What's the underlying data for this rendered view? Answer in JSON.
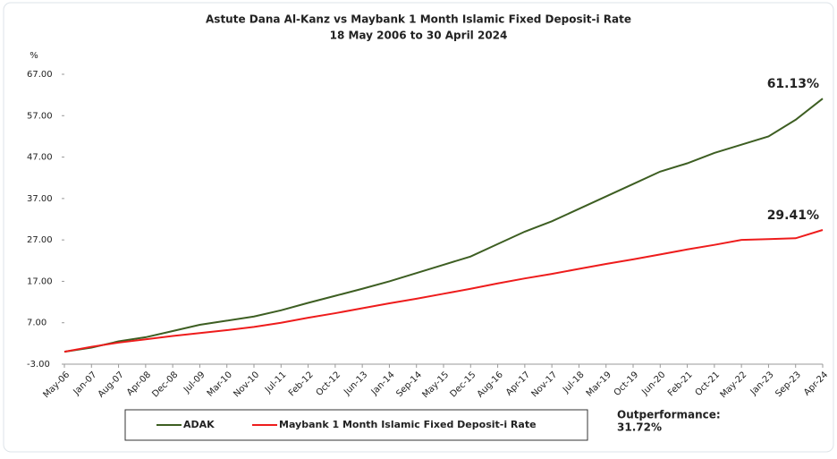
{
  "chart_data": {
    "type": "line",
    "title": "Astute Dana Al-Kanz vs Maybank 1 Month Islamic Fixed Deposit-i Rate",
    "subtitle": "18 May 2006 to 30 April 2024",
    "y_axis_label": "%",
    "categories": [
      "May-06",
      "Jan-07",
      "Aug-07",
      "Apr-08",
      "Dec-08",
      "Jul-09",
      "Mar-10",
      "Nov-10",
      "Jul-11",
      "Feb-12",
      "Oct-12",
      "Jun-13",
      "Jan-14",
      "Sep-14",
      "May-15",
      "Dec-15",
      "Aug-16",
      "Apr-17",
      "Nov-17",
      "Jul-18",
      "Mar-19",
      "Oct-19",
      "Jun-20",
      "Feb-21",
      "Oct-21",
      "May-22",
      "Jan-23",
      "Sep-23",
      "Apr-24"
    ],
    "series": [
      {
        "name": "ADAK",
        "color": "#3d5e22",
        "values": [
          0,
          1,
          2.5,
          3.5,
          5,
          6.5,
          7.5,
          8.5,
          10,
          11.8,
          13.5,
          15.2,
          17,
          19,
          21,
          23,
          26,
          29,
          31.5,
          34.5,
          37.5,
          40.5,
          43.5,
          45.5,
          48,
          50,
          52,
          56,
          61.13
        ],
        "value_labels": [
          null,
          null,
          null,
          null,
          null,
          null,
          null,
          null,
          null,
          null,
          null,
          null,
          null,
          null,
          null,
          null,
          null,
          null,
          null,
          null,
          null,
          null,
          null,
          null,
          null,
          null,
          null,
          null,
          "61.13%"
        ]
      },
      {
        "name": "Maybank 1 Month Islamic Fixed Deposit-i Rate",
        "color": "#ee1c1c",
        "values": [
          0,
          1.2,
          2.2,
          3,
          3.8,
          4.5,
          5.2,
          6,
          7,
          8.2,
          9.3,
          10.5,
          11.7,
          12.8,
          14,
          15.2,
          16.5,
          17.7,
          18.8,
          20,
          21.2,
          22.3,
          23.5,
          24.7,
          25.8,
          27,
          27.2,
          27.4,
          29.41
        ],
        "value_labels": [
          null,
          null,
          null,
          null,
          null,
          null,
          null,
          null,
          null,
          null,
          null,
          null,
          null,
          null,
          null,
          null,
          null,
          null,
          null,
          null,
          null,
          null,
          null,
          null,
          null,
          null,
          null,
          null,
          "29.41%"
        ]
      }
    ],
    "annotations": [
      "Outperformance:",
      "31.72%"
    ],
    "ylim": [
      -3,
      67
    ],
    "yticks": [
      {
        "value": -3,
        "label": "-3.00"
      },
      {
        "value": 7,
        "label": "7.00"
      },
      {
        "value": 17,
        "label": "17.00"
      },
      {
        "value": 27,
        "label": "27.00"
      },
      {
        "value": 37,
        "label": "37.00"
      },
      {
        "value": 47,
        "label": "47.00"
      },
      {
        "value": 57,
        "label": "57.00"
      },
      {
        "value": 67,
        "label": "67.00"
      }
    ],
    "grid": false,
    "legend": "bottom"
  }
}
